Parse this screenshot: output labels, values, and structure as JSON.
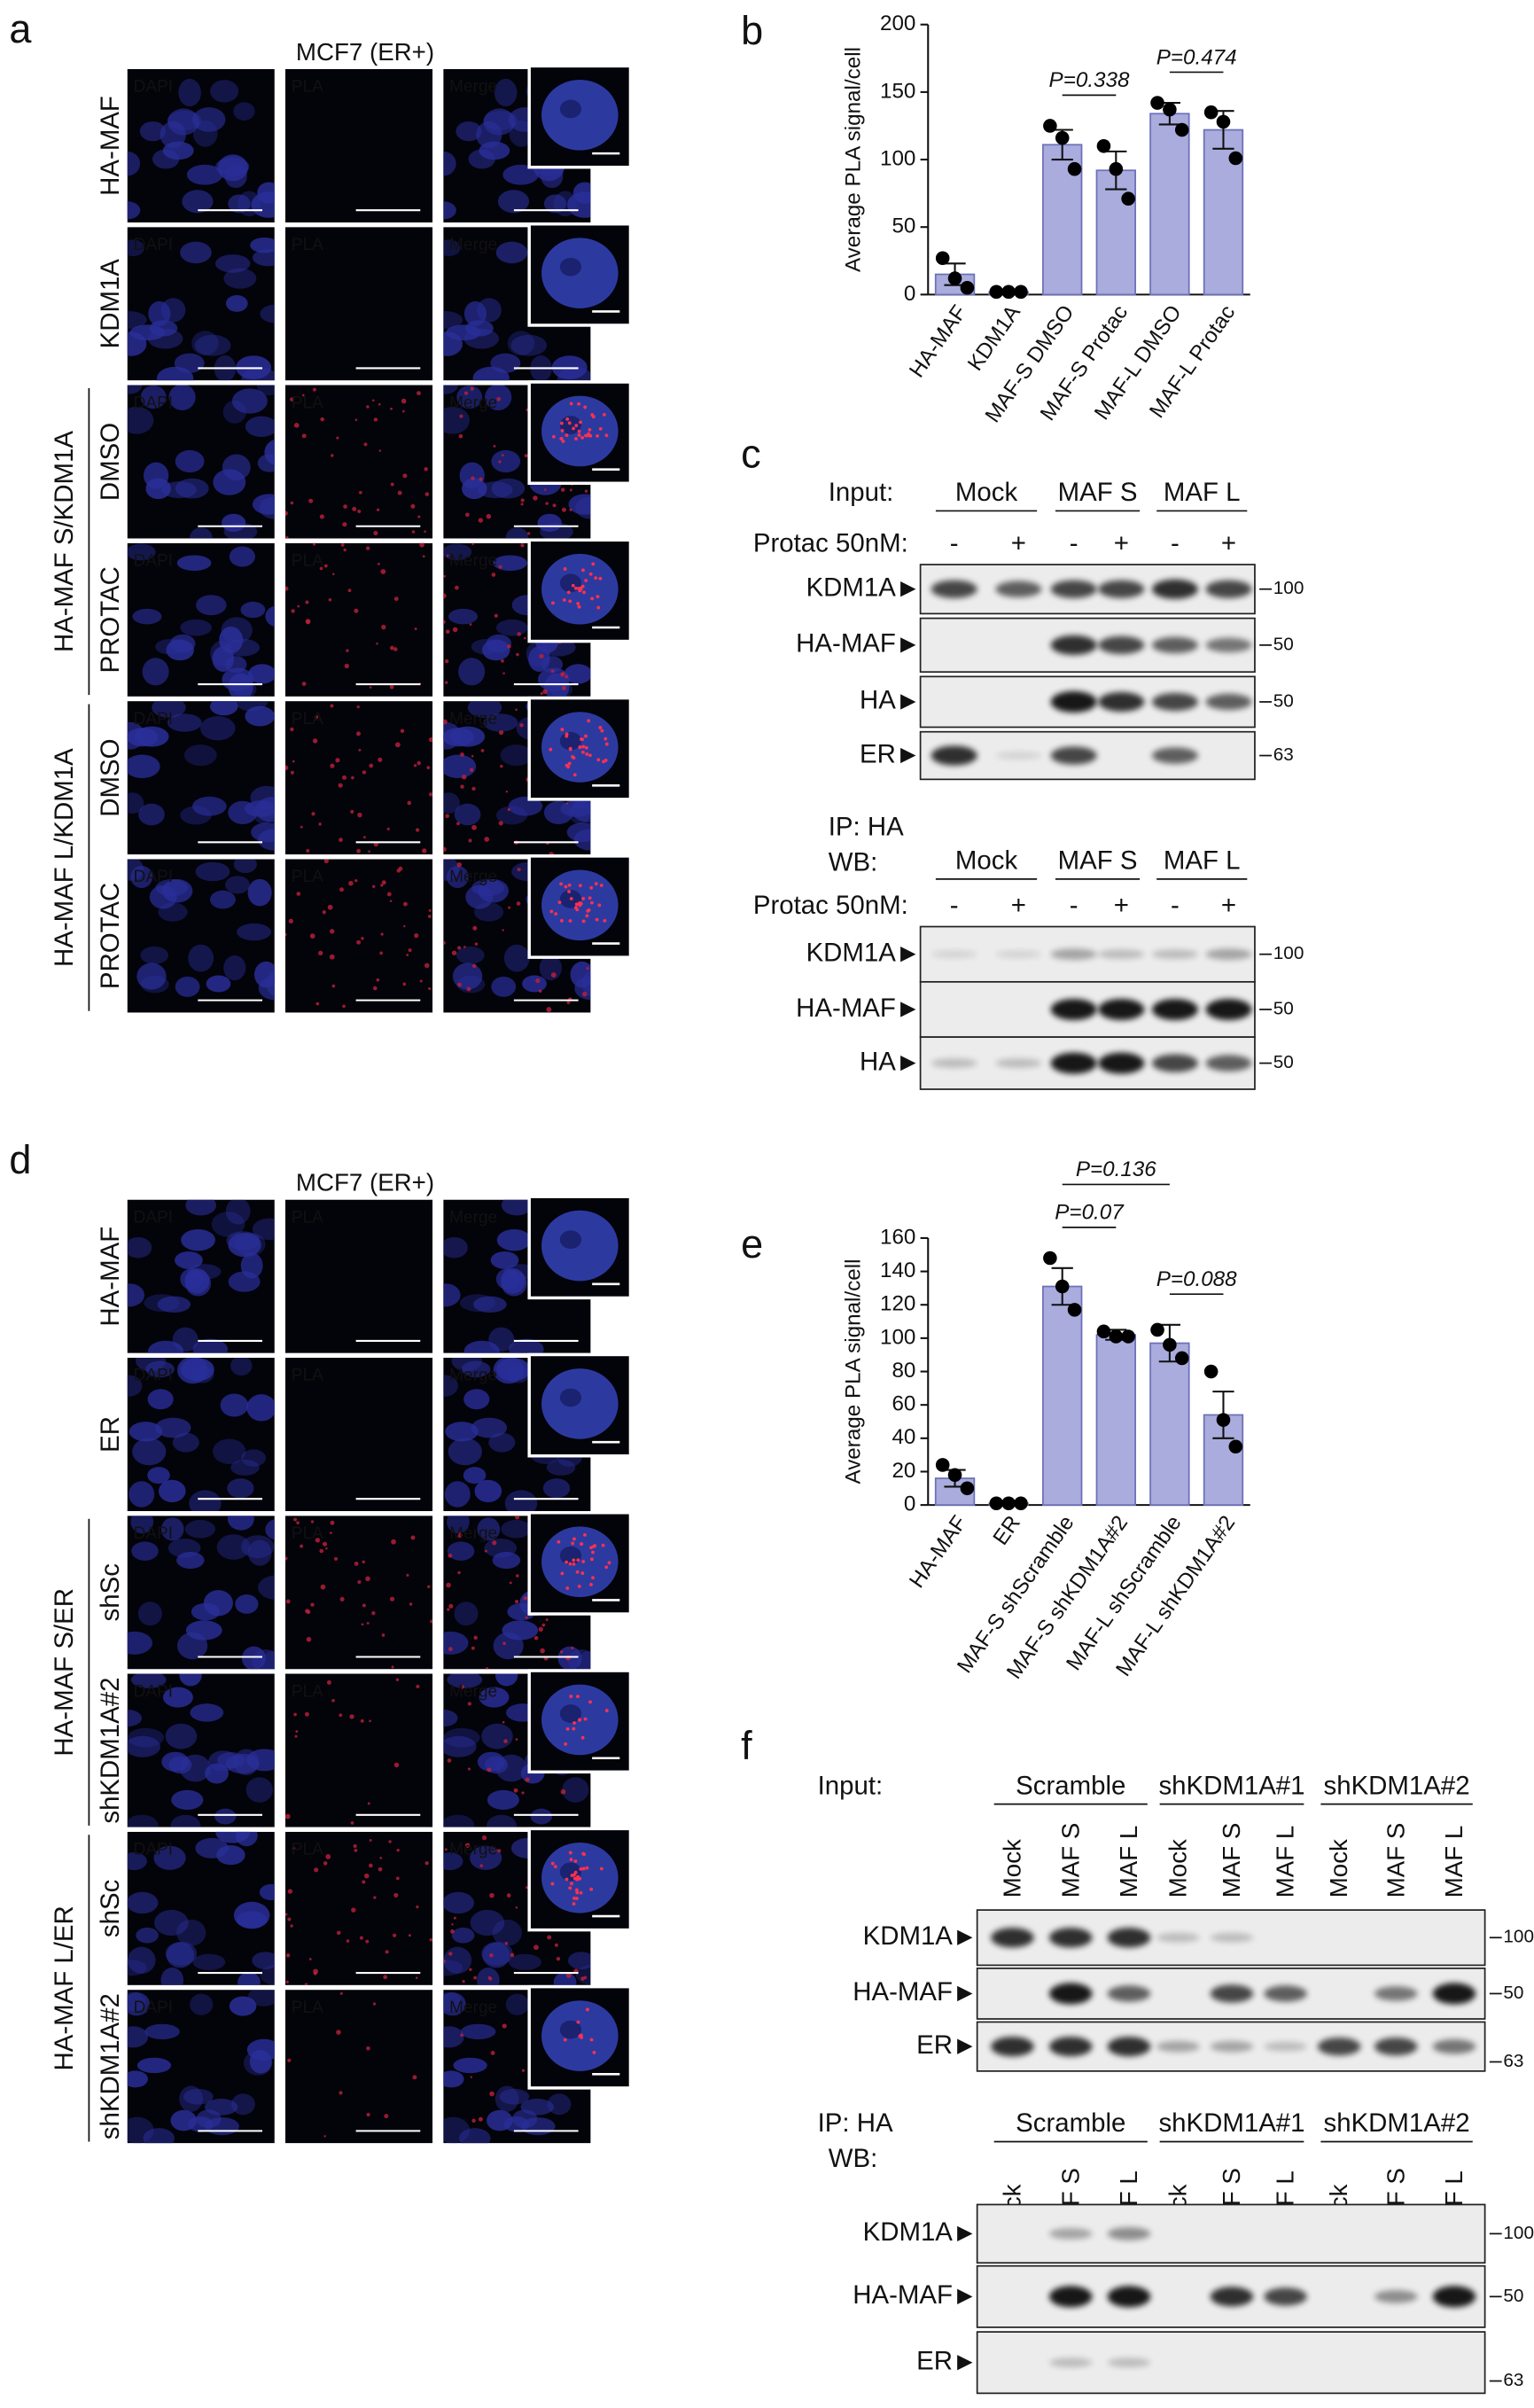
{
  "panel_a": {
    "label": "a",
    "title": "MCF7 (ER+)",
    "columns": [
      "DAPI",
      "PLA",
      "Merge"
    ],
    "rows": [
      "HA-MAF",
      "KDM1A",
      "DMSO",
      "PROTAC",
      "DMSO",
      "PROTAC"
    ],
    "groups": [
      "HA-MAF S/KDM1A",
      "HA-MAF L/KDM1A"
    ]
  },
  "panel_d": {
    "label": "d",
    "title": "MCF7 (ER+)",
    "columns": [
      "DAPI",
      "PLA",
      "Merge"
    ],
    "rows": [
      "HA-MAF",
      "ER",
      "shSc",
      "shKDM1A#2",
      "shSc",
      "shKDM1A#2"
    ],
    "groups": [
      "HA-MAF S/ER",
      "HA-MAF L/ER"
    ]
  },
  "chart_data": [
    {
      "type": "bar",
      "panel_label": "b",
      "ylabel": "Average PLA signal/cell",
      "categories": [
        "HA-MAF",
        "KDM1A",
        "MAF-S DMSO",
        "MAF-S Protac",
        "MAF-L DMSO",
        "MAF-L Protac"
      ],
      "values": [
        15,
        2,
        111,
        92,
        134,
        122
      ],
      "errors": [
        8,
        0.5,
        11,
        14,
        8,
        14
      ],
      "points": [
        [
          27,
          12,
          5
        ],
        [
          2,
          2,
          2
        ],
        [
          125,
          116,
          93
        ],
        [
          110,
          93,
          71
        ],
        [
          142,
          137,
          122
        ],
        [
          135,
          128,
          101
        ]
      ],
      "color": "#a9acdc",
      "ylim": [
        0,
        200
      ],
      "yticks": [
        0,
        50,
        100,
        150,
        200
      ],
      "annotations": [
        {
          "text": "P=0.338",
          "between": [
            "MAF-S DMSO",
            "MAF-S Protac"
          ]
        },
        {
          "text": "P=0.474",
          "between": [
            "MAF-L DMSO",
            "MAF-L Protac"
          ]
        }
      ]
    },
    {
      "type": "bar",
      "panel_label": "e",
      "ylabel": "Average PLA signal/cell",
      "categories": [
        "HA-MAF",
        "ER",
        "MAF-S shScramble",
        "MAF-S shKDM1A#2",
        "MAF-L shScramble",
        "MAF-L shKDM1A#2"
      ],
      "values": [
        16,
        1,
        131,
        102,
        97,
        54
      ],
      "errors": [
        5,
        0.5,
        11,
        3,
        11,
        14
      ],
      "points": [
        [
          24,
          18,
          10
        ],
        [
          1,
          1,
          1
        ],
        [
          148,
          131,
          117
        ],
        [
          104,
          101,
          101
        ],
        [
          105,
          96,
          88
        ],
        [
          80,
          51,
          35
        ]
      ],
      "color": "#a9acdc",
      "ylim": [
        0,
        160
      ],
      "yticks": [
        0,
        20,
        40,
        60,
        80,
        100,
        120,
        140,
        160
      ],
      "annotations": [
        {
          "text": "P=0.136",
          "between": [
            "MAF-S shScramble",
            "MAF-L shScramble"
          ]
        },
        {
          "text": "P=0.07",
          "between": [
            "MAF-S shScramble",
            "MAF-S shKDM1A#2"
          ]
        },
        {
          "text": "P=0.088",
          "between": [
            "MAF-L shScramble",
            "MAF-L shKDM1A#2"
          ]
        }
      ]
    }
  ],
  "panel_c": {
    "label": "c",
    "input": {
      "title": "Input:",
      "groups": [
        "Mock",
        "MAF S",
        "MAF L"
      ],
      "treatment": "Protac 50nM:",
      "lanes": [
        "-",
        "+",
        "-",
        "+",
        "-",
        "+"
      ],
      "rows": [
        {
          "name": "KDM1A",
          "marker": "100"
        },
        {
          "name": "HA-MAF",
          "marker": "50"
        },
        {
          "name": "HA",
          "marker": "50"
        },
        {
          "name": "ER",
          "marker": "63"
        }
      ]
    },
    "ip": {
      "title": "IP: HA",
      "wb": "WB:",
      "groups": [
        "Mock",
        "MAF S",
        "MAF L"
      ],
      "treatment": "Protac 50nM:",
      "lanes": [
        "-",
        "+",
        "-",
        "+",
        "-",
        "+"
      ],
      "rows": [
        {
          "name": "KDM1A",
          "marker": "100"
        },
        {
          "name": "HA-MAF",
          "marker": "50"
        },
        {
          "name": "HA",
          "marker": "50"
        }
      ]
    }
  },
  "panel_f": {
    "label": "f",
    "input": {
      "title": "Input:",
      "groups": [
        "Scramble",
        "shKDM1A#1",
        "shKDM1A#2"
      ],
      "lanes": [
        "Mock",
        "MAF S",
        "MAF L",
        "Mock",
        "MAF S",
        "MAF L",
        "Mock",
        "MAF S",
        "MAF L"
      ],
      "rows": [
        {
          "name": "KDM1A",
          "marker": "100"
        },
        {
          "name": "HA-MAF",
          "marker": "50"
        },
        {
          "name": "ER",
          "marker": "63"
        }
      ]
    },
    "ip": {
      "title": "IP: HA",
      "wb": "WB:",
      "groups": [
        "Scramble",
        "shKDM1A#1",
        "shKDM1A#2"
      ],
      "lanes": [
        "Mock",
        "MAF S",
        "MAF L",
        "Mock",
        "MAF S",
        "MAF L",
        "Mock",
        "MAF S",
        "MAF L"
      ],
      "rows": [
        {
          "name": "KDM1A",
          "marker": "100"
        },
        {
          "name": "HA-MAF",
          "marker": "50"
        },
        {
          "name": "ER",
          "marker": "63"
        }
      ]
    }
  }
}
